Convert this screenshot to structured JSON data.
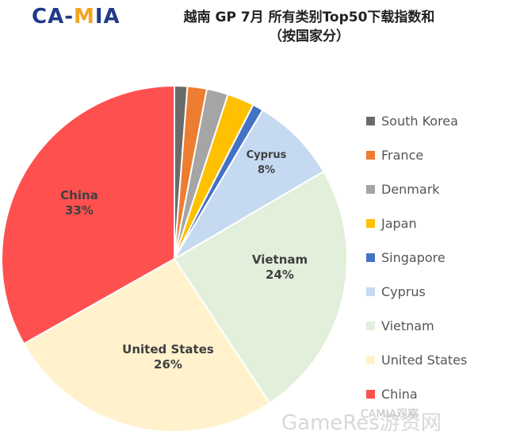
{
  "logo": {
    "ca": "CA",
    "dash": "-",
    "m": "M",
    "ia": "IA"
  },
  "title_line1": "越南 GP 7月 所有类别Top50下载指数和",
  "title_line2": "（按国家分）",
  "watermark": "GameRes游资网",
  "watermark_sub": "CAMIA观察",
  "chart_data": {
    "type": "pie",
    "title": "越南 GP 7月 所有类别Top50下载指数和（按国家分）",
    "slices": [
      {
        "name": "South Korea",
        "value": 1.2,
        "color": "#6b6b6b",
        "label": ""
      },
      {
        "name": "France",
        "value": 1.8,
        "color": "#ed7d31",
        "label": ""
      },
      {
        "name": "Denmark",
        "value": 2.0,
        "color": "#a5a5a5",
        "label": ""
      },
      {
        "name": "Japan",
        "value": 2.5,
        "color": "#ffc000",
        "label": ""
      },
      {
        "name": "Singapore",
        "value": 1.0,
        "color": "#4472c4",
        "label": ""
      },
      {
        "name": "Cyprus",
        "value": 8,
        "color": "#c5d9f1",
        "label": "8%"
      },
      {
        "name": "Vietnam",
        "value": 24,
        "color": "#e2efda",
        "label": "24%"
      },
      {
        "name": "United States",
        "value": 26,
        "color": "#fff2cc",
        "label": "26%"
      },
      {
        "name": "China",
        "value": 33,
        "color": "#ff5050",
        "label": "33%"
      }
    ],
    "legend_position": "right"
  }
}
